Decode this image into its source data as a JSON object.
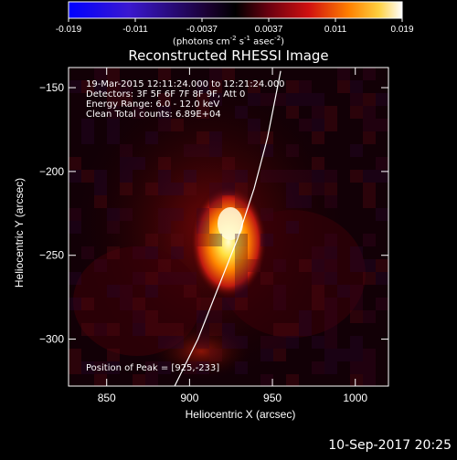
{
  "colorbar": {
    "ticks": [
      "-0.019",
      "-0.011",
      "-0.0037",
      "0.0037",
      "0.011",
      "0.019"
    ],
    "units_prefix": "(photons cm",
    "units_exp1": "-2",
    "units_mid": " s",
    "units_exp2": "-1",
    "units_mid2": " asec",
    "units_exp3": "-2",
    "units_suffix": ")",
    "min": -0.019,
    "max": 0.019
  },
  "plot": {
    "title": "Reconstructed RHESSI Image",
    "xlabel": "Heliocentric X (arcsec)",
    "ylabel": "Heliocentric Y (arcsec)",
    "xticks": [
      "850",
      "900",
      "950",
      "1000"
    ],
    "yticks": [
      "-150",
      "-200",
      "-250",
      "-300"
    ],
    "info_lines": [
      "19-Mar-2015 12:11:24.000 to 12:21:24.000",
      "Detectors: 3F 5F 6F 7F 8F 9F, Att 0",
      "Energy Range: 6.0 - 12.0 keV",
      "Clean    Total counts: 6.89E+04"
    ],
    "peak_label": "Position of Peak = [925,-233]",
    "timestamp": "10-Sep-2017 20:25"
  },
  "chart_data": {
    "type": "heatmap",
    "title": "Reconstructed RHESSI Image",
    "xlabel": "Heliocentric X (arcsec)",
    "ylabel": "Heliocentric Y (arcsec)",
    "xlim": [
      827,
      1020
    ],
    "ylim": [
      -328,
      -138
    ],
    "color_range": [
      -0.019,
      0.019
    ],
    "peak": {
      "x": 925,
      "y": -233
    },
    "limb_curve": [
      [
        891,
        -328
      ],
      [
        905,
        -300
      ],
      [
        917,
        -270
      ],
      [
        929,
        -240
      ],
      [
        939,
        -210
      ],
      [
        947,
        -180
      ],
      [
        953,
        -150
      ],
      [
        955,
        -140
      ]
    ]
  }
}
